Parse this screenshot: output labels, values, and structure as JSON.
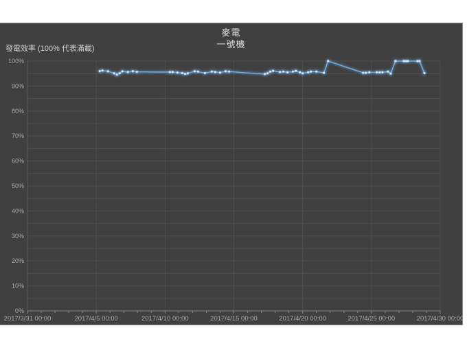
{
  "chart": {
    "title_line1": "麥電",
    "title_line2": "一號機",
    "colors": {
      "page_bg": "#ffffff",
      "chart_bg": "#404040",
      "chart_border": "#8f8f8f",
      "gridline": "#4e4e4e",
      "plot_edge": "#585858",
      "axis_line": "#878787",
      "title_text": "#dcdcdc",
      "tick_text": "#aaaaaa",
      "line": "#5b9bd5",
      "line_highlight": "#79aede",
      "marker_fill": "#d2e4f5",
      "marker_halo": "#6fa5dc"
    }
  },
  "chart_data": {
    "type": "line",
    "title": "麥電",
    "subtitle": "一號機",
    "xlabel": "",
    "ylabel": "發電效率 (100% 代表滿載)",
    "ylim": [
      0,
      100
    ],
    "y_tick_step_pct": 10,
    "y_gridline_step_pct": 5,
    "y_tick_labels": [
      "0%",
      "10%",
      "20%",
      "30%",
      "40%",
      "50%",
      "60%",
      "70%",
      "80%",
      "90%",
      "100%"
    ],
    "x_range_days": [
      0,
      30
    ],
    "x_tick_days": [
      0,
      5,
      10,
      15,
      20,
      25,
      30
    ],
    "x_tick_labels": [
      "2017/3/31 00:00",
      "2017/4/5 00:00",
      "2017/4/10 00:00",
      "2017/4/15 00:00",
      "2017/4/20 00:00",
      "2017/4/25 00:00",
      "2017/4/30 00:00"
    ],
    "x_minor_tick_step_days": 1,
    "grid": true,
    "legend": false,
    "series": [
      {
        "name": "一號機",
        "unit": "percent_efficiency",
        "points_day_pct": [
          [
            5.25,
            96.0
          ],
          [
            5.45,
            96.2
          ],
          [
            5.85,
            95.9
          ],
          [
            6.3,
            95.1
          ],
          [
            6.5,
            94.6
          ],
          [
            6.7,
            95.1
          ],
          [
            6.9,
            95.9
          ],
          [
            7.3,
            95.6
          ],
          [
            7.65,
            95.9
          ],
          [
            7.95,
            95.7
          ],
          [
            10.35,
            95.6
          ],
          [
            10.55,
            95.6
          ],
          [
            10.9,
            95.4
          ],
          [
            11.25,
            95.2
          ],
          [
            11.45,
            94.9
          ],
          [
            11.65,
            95.1
          ],
          [
            12.15,
            95.9
          ],
          [
            12.4,
            95.8
          ],
          [
            12.9,
            95.2
          ],
          [
            13.4,
            95.8
          ],
          [
            13.65,
            95.6
          ],
          [
            14.0,
            95.4
          ],
          [
            14.4,
            95.9
          ],
          [
            14.65,
            95.8
          ],
          [
            17.25,
            94.8
          ],
          [
            17.45,
            95.1
          ],
          [
            17.65,
            95.8
          ],
          [
            17.85,
            96.1
          ],
          [
            18.35,
            95.6
          ],
          [
            18.6,
            95.8
          ],
          [
            18.9,
            95.5
          ],
          [
            19.3,
            95.8
          ],
          [
            19.5,
            96.1
          ],
          [
            19.8,
            95.5
          ],
          [
            20.0,
            95.1
          ],
          [
            20.4,
            95.5
          ],
          [
            20.6,
            95.8
          ],
          [
            21.0,
            95.8
          ],
          [
            21.55,
            95.3
          ],
          [
            21.85,
            100
          ],
          [
            24.4,
            95.3
          ],
          [
            24.6,
            95.3
          ],
          [
            24.85,
            95.5
          ],
          [
            25.4,
            95.5
          ],
          [
            25.6,
            95.5
          ],
          [
            25.8,
            95.5
          ],
          [
            26.2,
            95.8
          ],
          [
            26.4,
            95.0
          ],
          [
            26.75,
            100
          ],
          [
            27.35,
            100
          ],
          [
            27.5,
            100
          ],
          [
            27.65,
            100
          ],
          [
            28.35,
            100
          ],
          [
            28.5,
            100
          ],
          [
            28.85,
            95.2
          ]
        ]
      }
    ]
  }
}
